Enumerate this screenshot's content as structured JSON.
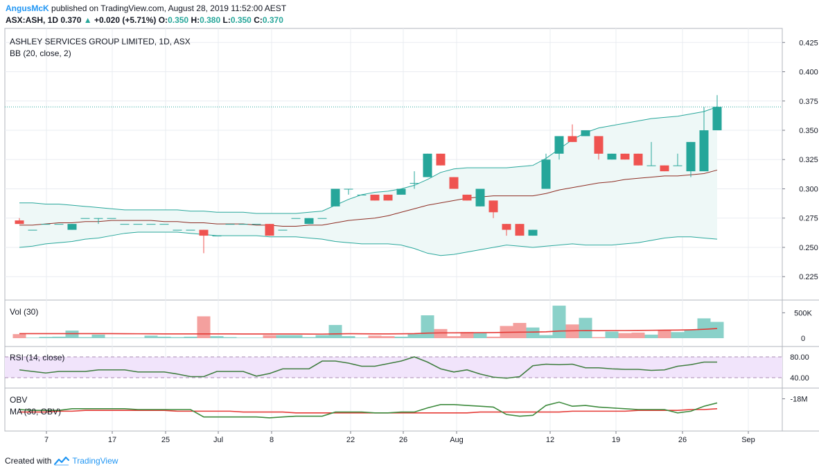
{
  "header": {
    "author": "AngusMcK",
    "published_text": "published on TradingView.com, August 28, 2019 11:52:00 AEST",
    "symbol_line": "ASX:ASH, 1D",
    "last": "0.370",
    "change": "+0.020 (+5.71%)",
    "o_label": "O:",
    "o": "0.350",
    "h_label": "H:",
    "h": "0.380",
    "l_label": "L:",
    "l": "0.350",
    "c_label": "C:",
    "c": "0.370"
  },
  "footer": {
    "created_with": "Created with",
    "brand": "TradingView"
  },
  "colors": {
    "up": "#26a69a",
    "down": "#ef5350",
    "up_vol": "#8ad1c9",
    "down_vol": "#f4a09e",
    "bb_band": "#26a69a",
    "bb_basis": "#8d2b21",
    "bb_fill": "#eef8f7",
    "vol_ma": "#e53935",
    "rsi_line": "#3f7d3f",
    "rsi_fill": "#f1e4fb",
    "obv_line": "#3c8a3c",
    "obv_ma": "#e53935",
    "grid": "#e9ecf1"
  },
  "chart_data": {
    "type": "candlestick",
    "title": "ASHLEY SERVICES GROUP LIMITED, 1D, ASX",
    "indicator_label": "BB (20, close, 2)",
    "y_ticks": [
      "0.425",
      "0.400",
      "0.375",
      "0.350",
      "0.325",
      "0.300",
      "0.275",
      "0.250",
      "0.225"
    ],
    "ylim": [
      0.205,
      0.437
    ],
    "last_price": 0.37,
    "x_labels": [
      "7",
      "17",
      "25",
      "Jul",
      "8",
      "22",
      "26",
      "Aug",
      "12",
      "19",
      "26",
      "Sep"
    ],
    "candles": [
      {
        "o": 0.273,
        "h": 0.275,
        "l": 0.27,
        "c": 0.27
      },
      {
        "o": 0.265,
        "h": 0.265,
        "l": 0.265,
        "c": 0.265
      },
      {
        "o": 0.27,
        "h": 0.27,
        "l": 0.27,
        "c": 0.27
      },
      {
        "o": 0.27,
        "h": 0.27,
        "l": 0.27,
        "c": 0.27
      },
      {
        "o": 0.265,
        "h": 0.27,
        "l": 0.265,
        "c": 0.27
      },
      {
        "o": 0.275,
        "h": 0.275,
        "l": 0.275,
        "c": 0.275
      },
      {
        "o": 0.275,
        "h": 0.275,
        "l": 0.27,
        "c": 0.275
      },
      {
        "o": 0.275,
        "h": 0.275,
        "l": 0.275,
        "c": 0.275
      },
      {
        "o": 0.27,
        "h": 0.27,
        "l": 0.27,
        "c": 0.27
      },
      {
        "o": 0.27,
        "h": 0.27,
        "l": 0.27,
        "c": 0.27
      },
      {
        "o": 0.27,
        "h": 0.27,
        "l": 0.27,
        "c": 0.27
      },
      {
        "o": 0.27,
        "h": 0.27,
        "l": 0.27,
        "c": 0.27
      },
      {
        "o": 0.265,
        "h": 0.265,
        "l": 0.265,
        "c": 0.265
      },
      {
        "o": 0.265,
        "h": 0.265,
        "l": 0.265,
        "c": 0.265
      },
      {
        "o": 0.265,
        "h": 0.265,
        "l": 0.245,
        "c": 0.26
      },
      {
        "o": 0.26,
        "h": 0.26,
        "l": 0.26,
        "c": 0.26
      },
      {
        "o": 0.27,
        "h": 0.27,
        "l": 0.27,
        "c": 0.27
      },
      {
        "o": 0.27,
        "h": 0.27,
        "l": 0.27,
        "c": 0.27
      },
      {
        "o": 0.27,
        "h": 0.27,
        "l": 0.27,
        "c": 0.27
      },
      {
        "o": 0.27,
        "h": 0.27,
        "l": 0.26,
        "c": 0.26
      },
      {
        "o": 0.265,
        "h": 0.265,
        "l": 0.265,
        "c": 0.265
      },
      {
        "o": 0.275,
        "h": 0.275,
        "l": 0.275,
        "c": 0.275
      },
      {
        "o": 0.27,
        "h": 0.275,
        "l": 0.27,
        "c": 0.275
      },
      {
        "o": 0.275,
        "h": 0.275,
        "l": 0.275,
        "c": 0.275
      },
      {
        "o": 0.285,
        "h": 0.3,
        "l": 0.285,
        "c": 0.3
      },
      {
        "o": 0.3,
        "h": 0.3,
        "l": 0.295,
        "c": 0.3
      },
      {
        "o": 0.295,
        "h": 0.295,
        "l": 0.295,
        "c": 0.295
      },
      {
        "o": 0.295,
        "h": 0.295,
        "l": 0.29,
        "c": 0.29
      },
      {
        "o": 0.295,
        "h": 0.295,
        "l": 0.29,
        "c": 0.29
      },
      {
        "o": 0.295,
        "h": 0.3,
        "l": 0.295,
        "c": 0.3
      },
      {
        "o": 0.305,
        "h": 0.315,
        "l": 0.3,
        "c": 0.305
      },
      {
        "o": 0.31,
        "h": 0.33,
        "l": 0.31,
        "c": 0.33
      },
      {
        "o": 0.33,
        "h": 0.33,
        "l": 0.32,
        "c": 0.32
      },
      {
        "o": 0.31,
        "h": 0.31,
        "l": 0.3,
        "c": 0.3
      },
      {
        "o": 0.295,
        "h": 0.295,
        "l": 0.29,
        "c": 0.29
      },
      {
        "o": 0.285,
        "h": 0.3,
        "l": 0.285,
        "c": 0.3
      },
      {
        "o": 0.29,
        "h": 0.29,
        "l": 0.275,
        "c": 0.28
      },
      {
        "o": 0.27,
        "h": 0.27,
        "l": 0.26,
        "c": 0.265
      },
      {
        "o": 0.27,
        "h": 0.27,
        "l": 0.26,
        "c": 0.26
      },
      {
        "o": 0.26,
        "h": 0.265,
        "l": 0.26,
        "c": 0.265
      },
      {
        "o": 0.3,
        "h": 0.33,
        "l": 0.3,
        "c": 0.325
      },
      {
        "o": 0.33,
        "h": 0.345,
        "l": 0.325,
        "c": 0.345
      },
      {
        "o": 0.345,
        "h": 0.355,
        "l": 0.34,
        "c": 0.34
      },
      {
        "o": 0.345,
        "h": 0.35,
        "l": 0.345,
        "c": 0.35
      },
      {
        "o": 0.345,
        "h": 0.345,
        "l": 0.325,
        "c": 0.33
      },
      {
        "o": 0.325,
        "h": 0.33,
        "l": 0.325,
        "c": 0.33
      },
      {
        "o": 0.33,
        "h": 0.33,
        "l": 0.325,
        "c": 0.325
      },
      {
        "o": 0.33,
        "h": 0.33,
        "l": 0.32,
        "c": 0.32
      },
      {
        "o": 0.32,
        "h": 0.34,
        "l": 0.32,
        "c": 0.32
      },
      {
        "o": 0.32,
        "h": 0.32,
        "l": 0.315,
        "c": 0.315
      },
      {
        "o": 0.32,
        "h": 0.33,
        "l": 0.32,
        "c": 0.32
      },
      {
        "o": 0.315,
        "h": 0.34,
        "l": 0.31,
        "c": 0.34
      },
      {
        "o": 0.315,
        "h": 0.37,
        "l": 0.315,
        "c": 0.35
      },
      {
        "o": 0.35,
        "h": 0.38,
        "l": 0.35,
        "c": 0.37
      }
    ],
    "bb_upper": [
      0.288,
      0.288,
      0.287,
      0.287,
      0.286,
      0.285,
      0.284,
      0.283,
      0.282,
      0.282,
      0.282,
      0.282,
      0.282,
      0.281,
      0.281,
      0.28,
      0.28,
      0.28,
      0.279,
      0.279,
      0.279,
      0.279,
      0.28,
      0.281,
      0.286,
      0.291,
      0.295,
      0.297,
      0.298,
      0.3,
      0.303,
      0.308,
      0.314,
      0.317,
      0.318,
      0.318,
      0.318,
      0.318,
      0.319,
      0.32,
      0.326,
      0.334,
      0.342,
      0.348,
      0.352,
      0.354,
      0.356,
      0.358,
      0.36,
      0.361,
      0.362,
      0.364,
      0.366,
      0.37
    ],
    "bb_basis": [
      0.269,
      0.269,
      0.27,
      0.271,
      0.271,
      0.272,
      0.272,
      0.273,
      0.273,
      0.273,
      0.273,
      0.272,
      0.272,
      0.271,
      0.271,
      0.27,
      0.27,
      0.27,
      0.269,
      0.269,
      0.268,
      0.268,
      0.269,
      0.269,
      0.271,
      0.273,
      0.274,
      0.275,
      0.277,
      0.28,
      0.283,
      0.286,
      0.288,
      0.29,
      0.292,
      0.293,
      0.294,
      0.294,
      0.294,
      0.294,
      0.296,
      0.299,
      0.301,
      0.303,
      0.305,
      0.306,
      0.308,
      0.309,
      0.31,
      0.311,
      0.311,
      0.312,
      0.313,
      0.316
    ],
    "bb_lower": [
      0.25,
      0.251,
      0.253,
      0.254,
      0.255,
      0.257,
      0.258,
      0.26,
      0.262,
      0.263,
      0.263,
      0.263,
      0.263,
      0.262,
      0.261,
      0.26,
      0.26,
      0.26,
      0.26,
      0.259,
      0.259,
      0.259,
      0.258,
      0.257,
      0.255,
      0.254,
      0.253,
      0.253,
      0.253,
      0.252,
      0.249,
      0.245,
      0.243,
      0.244,
      0.246,
      0.248,
      0.25,
      0.252,
      0.251,
      0.25,
      0.251,
      0.252,
      0.253,
      0.252,
      0.252,
      0.252,
      0.253,
      0.254,
      0.256,
      0.258,
      0.259,
      0.259,
      0.258,
      0.257
    ],
    "volume": {
      "label": "Vol (30)",
      "ticks": [
        "500K",
        "0"
      ],
      "ylim": [
        0,
        750000
      ],
      "values": [
        80000,
        10000,
        25000,
        30000,
        150000,
        20000,
        70000,
        10000,
        10000,
        10000,
        50000,
        30000,
        20000,
        30000,
        430000,
        40000,
        20000,
        10000,
        10000,
        60000,
        60000,
        60000,
        20000,
        60000,
        260000,
        40000,
        10000,
        50000,
        40000,
        30000,
        80000,
        450000,
        180000,
        40000,
        120000,
        100000,
        30000,
        240000,
        300000,
        210000,
        60000,
        640000,
        270000,
        400000,
        20000,
        130000,
        100000,
        110000,
        70000,
        150000,
        120000,
        160000,
        390000,
        320000
      ],
      "ma": [
        90000,
        90000,
        90000,
        90000,
        90000,
        90000,
        90000,
        90000,
        88000,
        87000,
        86000,
        85000,
        85000,
        85000,
        85000,
        85000,
        84000,
        83000,
        82000,
        82000,
        82000,
        82000,
        81000,
        80000,
        85000,
        88000,
        86000,
        85000,
        85000,
        86000,
        90000,
        100000,
        104000,
        105000,
        106000,
        108000,
        110000,
        115000,
        118000,
        120000,
        125000,
        140000,
        145000,
        150000,
        148000,
        150000,
        150000,
        152000,
        155000,
        158000,
        160000,
        165000,
        175000,
        190000
      ]
    },
    "rsi": {
      "label": "RSI (14, close)",
      "ticks": [
        "80.00",
        "40.00"
      ],
      "ylim": [
        20,
        100
      ],
      "band": [
        40,
        80
      ],
      "values": [
        55,
        52,
        49,
        52,
        52,
        52,
        55,
        55,
        55,
        51,
        51,
        51,
        47,
        42,
        42,
        52,
        52,
        52,
        43,
        48,
        57,
        57,
        57,
        72,
        72,
        68,
        62,
        62,
        67,
        72,
        80,
        70,
        57,
        51,
        55,
        47,
        41,
        39,
        42,
        63,
        66,
        65,
        66,
        59,
        59,
        57,
        56,
        56,
        54,
        55,
        62,
        65,
        70,
        70
      ]
    },
    "obv": {
      "label": "OBV",
      "ma_label": "MA (30, OBV)",
      "ticks": [
        "-18M"
      ],
      "ylim": [
        -21.9,
        -16.7
      ],
      "values": [
        -19.3,
        -19.4,
        -19.4,
        -19.4,
        -19.2,
        -19.2,
        -19.2,
        -19.2,
        -19.2,
        -19.3,
        -19.3,
        -19.3,
        -19.3,
        -19.3,
        -20.2,
        -20.2,
        -20.2,
        -20.2,
        -20.2,
        -20.3,
        -20.2,
        -20.1,
        -20.1,
        -20.1,
        -19.6,
        -19.6,
        -19.6,
        -19.7,
        -19.7,
        -19.6,
        -19.6,
        -19.1,
        -18.7,
        -18.7,
        -18.8,
        -18.9,
        -19.0,
        -19.9,
        -20.1,
        -20.0,
        -18.8,
        -18.4,
        -18.9,
        -18.8,
        -19.0,
        -19.1,
        -19.2,
        -19.3,
        -19.3,
        -19.3,
        -19.7,
        -19.5,
        -18.9,
        -18.5
      ],
      "ma": [
        -19.6,
        -19.6,
        -19.6,
        -19.5,
        -19.5,
        -19.4,
        -19.4,
        -19.4,
        -19.4,
        -19.4,
        -19.4,
        -19.4,
        -19.5,
        -19.5,
        -19.5,
        -19.5,
        -19.5,
        -19.6,
        -19.6,
        -19.6,
        -19.6,
        -19.7,
        -19.7,
        -19.7,
        -19.7,
        -19.7,
        -19.7,
        -19.7,
        -19.7,
        -19.7,
        -19.7,
        -19.7,
        -19.7,
        -19.7,
        -19.7,
        -19.6,
        -19.6,
        -19.6,
        -19.6,
        -19.6,
        -19.6,
        -19.6,
        -19.5,
        -19.5,
        -19.5,
        -19.5,
        -19.5,
        -19.4,
        -19.4,
        -19.4,
        -19.4,
        -19.3,
        -19.3,
        -19.2
      ]
    }
  }
}
